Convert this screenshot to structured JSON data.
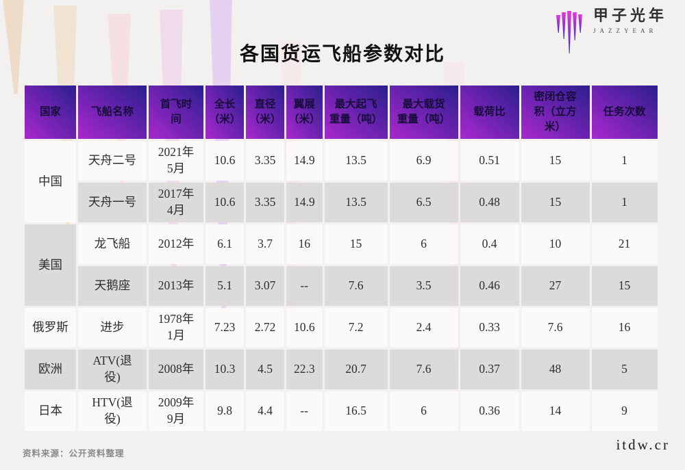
{
  "title": "各国货运飞船参数对比",
  "logo": {
    "name_zh": "甲子光年",
    "name_en": "JAZZYEAR"
  },
  "source_note": "资料来源：公开资料整理",
  "watermark": "itdw.cr",
  "colors": {
    "header_gradient_bottom_left": "#a928cd",
    "header_gradient_top_right": "#2b1e90",
    "header_text": "#170d3b",
    "row_light": "#fbfaf9",
    "row_shaded": "#dcdbda",
    "logo_gradient_top": "#e23ade",
    "logo_gradient_bottom": "#3a2ab8"
  },
  "chart_data": {
    "type": "table",
    "title": "各国货运飞船参数对比",
    "columns": [
      "国家",
      "飞船名称",
      "首飞时\n间",
      "全长\n（米）",
      "直径\n（米）",
      "翼展\n（米）",
      "最大起飞\n重量（吨）",
      "最大载货\n重量（吨）",
      "载荷比",
      "密闭仓容\n积（立方\n米）",
      "任务次数"
    ],
    "rows": [
      {
        "country": "中国",
        "country_rowspan": 2,
        "country_shaded": false,
        "shaded": false,
        "cells": [
          "天舟二号",
          "2021年\n5月",
          "10.6",
          "3.35",
          "14.9",
          "13.5",
          "6.9",
          "0.51",
          "15",
          "1"
        ]
      },
      {
        "country": null,
        "shaded": true,
        "cells": [
          "天舟一号",
          "2017年\n4月",
          "10.6",
          "3.35",
          "14.9",
          "13.5",
          "6.5",
          "0.48",
          "15",
          "1"
        ]
      },
      {
        "country": "美国",
        "country_rowspan": 2,
        "country_shaded": true,
        "shaded": false,
        "cells": [
          "龙飞船",
          "2012年",
          "6.1",
          "3.7",
          "16",
          "15",
          "6",
          "0.4",
          "10",
          "21"
        ]
      },
      {
        "country": null,
        "shaded": true,
        "cells": [
          "天鹅座",
          "2013年",
          "5.1",
          "3.07",
          "--",
          "7.6",
          "3.5",
          "0.46",
          "27",
          "15"
        ]
      },
      {
        "country": "俄罗斯",
        "country_rowspan": 1,
        "country_shaded": false,
        "shaded": false,
        "cells": [
          "进步",
          "1978年\n1月",
          "7.23",
          "2.72",
          "10.6",
          "7.2",
          "2.4",
          "0.33",
          "7.6",
          "16"
        ]
      },
      {
        "country": "欧洲",
        "country_rowspan": 1,
        "country_shaded": true,
        "shaded": true,
        "cells": [
          "ATV(退\n役)",
          "2008年",
          "10.3",
          "4.5",
          "22.3",
          "20.7",
          "7.6",
          "0.37",
          "48",
          "5"
        ]
      },
      {
        "country": "日本",
        "country_rowspan": 1,
        "country_shaded": false,
        "shaded": false,
        "cells": [
          "HTV(退\n役)",
          "2009年\n9月",
          "9.8",
          "4.4",
          "--",
          "16.5",
          "6",
          "0.36",
          "14",
          "9"
        ]
      }
    ]
  }
}
